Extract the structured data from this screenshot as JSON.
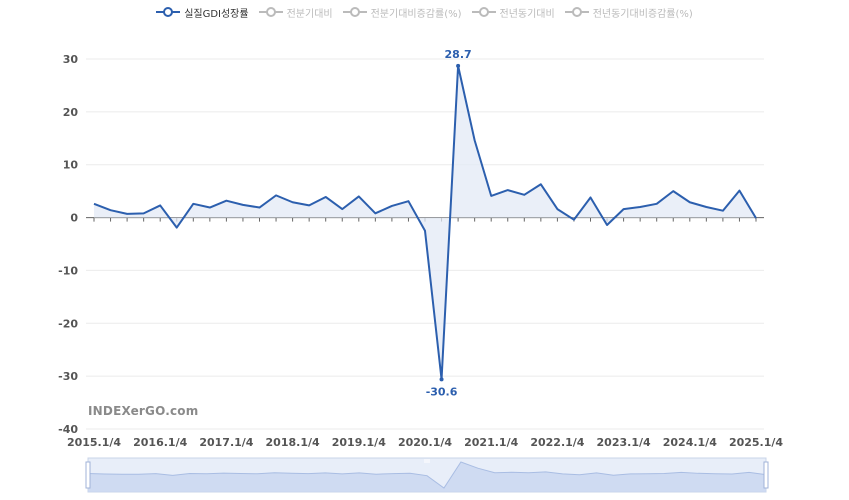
{
  "legend": {
    "items": [
      {
        "label": "실질GDI성장률",
        "active": true
      },
      {
        "label": "전분기대비",
        "active": false
      },
      {
        "label": "전분기대비증감률(%)",
        "active": false
      },
      {
        "label": "전년동기대비",
        "active": false
      },
      {
        "label": "전년동기대비증감률(%)",
        "active": false
      }
    ]
  },
  "watermark": "INDEXerGO.com",
  "colors": {
    "line": "#2c5fae",
    "area": "#e3eaf6",
    "grid": "#ebebeb",
    "axis": "#666666",
    "inactive": "#bbbbbb"
  },
  "chart_data": {
    "type": "area",
    "grid": true,
    "legend_position": "top-center",
    "ylim": [
      -40,
      30
    ],
    "yticks": [
      30,
      20,
      10,
      0,
      -10,
      -20,
      -30,
      -40
    ],
    "xtick_labels": [
      "2015.1/4",
      "2016.1/4",
      "2017.1/4",
      "2018.1/4",
      "2019.1/4",
      "2020.1/4",
      "2021.1/4",
      "2022.1/4",
      "2023.1/4",
      "2024.1/4",
      "2025.1/4"
    ],
    "series": [
      {
        "name": "실질GDI성장률",
        "x": [
          "2015.1/4",
          "2015.2/4",
          "2015.3/4",
          "2015.4/4",
          "2016.1/4",
          "2016.2/4",
          "2016.3/4",
          "2016.4/4",
          "2017.1/4",
          "2017.2/4",
          "2017.3/4",
          "2017.4/4",
          "2018.1/4",
          "2018.2/4",
          "2018.3/4",
          "2018.4/4",
          "2019.1/4",
          "2019.2/4",
          "2019.3/4",
          "2019.4/4",
          "2020.1/4",
          "2020.2/4",
          "2020.3/4",
          "2020.4/4",
          "2021.1/4",
          "2021.2/4",
          "2021.3/4",
          "2021.4/4",
          "2022.1/4",
          "2022.2/4",
          "2022.3/4",
          "2022.4/4",
          "2023.1/4",
          "2023.2/4",
          "2023.3/4",
          "2023.4/4",
          "2024.1/4",
          "2024.2/4",
          "2024.3/4",
          "2024.4/4",
          "2025.1/4"
        ],
        "values": [
          2.6,
          1.4,
          0.7,
          0.8,
          2.3,
          -1.9,
          2.6,
          1.9,
          3.2,
          2.4,
          1.9,
          4.2,
          2.9,
          2.3,
          3.9,
          1.6,
          4.0,
          0.8,
          2.2,
          3.1,
          -2.5,
          -30.6,
          28.7,
          14.6,
          4.1,
          5.2,
          4.3,
          6.3,
          1.6,
          -0.4,
          3.8,
          -1.4,
          1.6,
          2.0,
          2.6,
          5.0,
          2.9,
          2.0,
          1.3,
          5.1,
          -0.1
        ]
      }
    ],
    "annotations": [
      {
        "x": "2020.2/4",
        "value": -30.6,
        "text": "-30.6"
      },
      {
        "x": "2020.3/4",
        "value": 28.7,
        "text": "28.7"
      }
    ]
  }
}
